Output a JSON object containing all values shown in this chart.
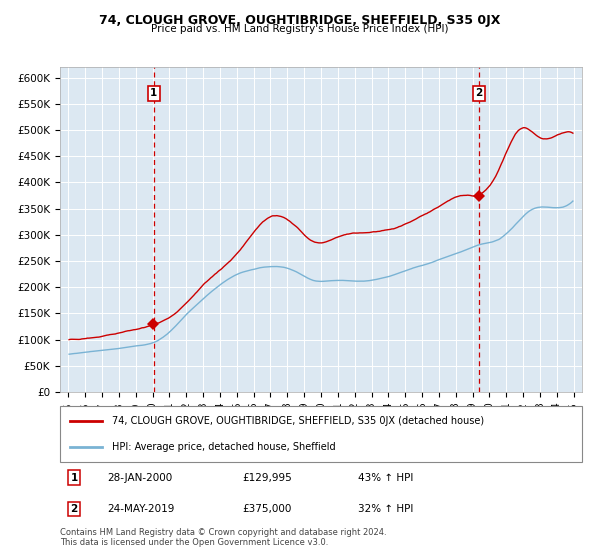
{
  "title": "74, CLOUGH GROVE, OUGHTIBRIDGE, SHEFFIELD, S35 0JX",
  "subtitle": "Price paid vs. HM Land Registry's House Price Index (HPI)",
  "legend_line1": "74, CLOUGH GROVE, OUGHTIBRIDGE, SHEFFIELD, S35 0JX (detached house)",
  "legend_line2": "HPI: Average price, detached house, Sheffield",
  "transaction1_date": "28-JAN-2000",
  "transaction1_price": "£129,995",
  "transaction1_hpi": "43% ↑ HPI",
  "transaction2_date": "24-MAY-2019",
  "transaction2_price": "£375,000",
  "transaction2_hpi": "32% ↑ HPI",
  "footnote1": "Contains HM Land Registry data © Crown copyright and database right 2024.",
  "footnote2": "This data is licensed under the Open Government Licence v3.0.",
  "hpi_color": "#7ab3d4",
  "property_color": "#cc0000",
  "marker_color": "#cc0000",
  "vline_color": "#cc0000",
  "background_color": "#dce8f2",
  "grid_color": "#ffffff",
  "ylim": [
    0,
    620000
  ],
  "yticks": [
    0,
    50000,
    100000,
    150000,
    200000,
    250000,
    300000,
    350000,
    400000,
    450000,
    500000,
    550000,
    600000
  ],
  "transaction1_x": 2000.07,
  "transaction2_x": 2019.38
}
